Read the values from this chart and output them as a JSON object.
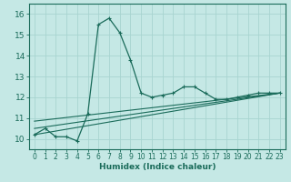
{
  "xlabel": "Humidex (Indice chaleur)",
  "bg_color": "#c5e8e5",
  "line_color": "#1a6b5a",
  "grid_color": "#a8d4d0",
  "xlim": [
    -0.5,
    23.5
  ],
  "ylim": [
    9.5,
    16.5
  ],
  "yticks": [
    10,
    11,
    12,
    13,
    14,
    15,
    16
  ],
  "xticks": [
    0,
    1,
    2,
    3,
    4,
    5,
    6,
    7,
    8,
    9,
    10,
    11,
    12,
    13,
    14,
    15,
    16,
    17,
    18,
    19,
    20,
    21,
    22,
    23
  ],
  "series1_x": [
    0,
    1,
    2,
    3,
    4,
    5,
    6,
    7,
    8,
    9,
    10,
    11,
    12,
    13,
    14,
    15,
    16,
    17,
    18,
    19,
    20,
    21,
    22,
    23
  ],
  "series1_y": [
    10.2,
    10.5,
    10.1,
    10.1,
    9.9,
    11.2,
    15.5,
    15.8,
    15.1,
    13.8,
    12.2,
    12.0,
    12.1,
    12.2,
    12.5,
    12.5,
    12.2,
    11.9,
    11.9,
    12.0,
    12.1,
    12.2,
    12.2,
    12.2
  ],
  "trend1_x": [
    0,
    23
  ],
  "trend1_y": [
    10.2,
    12.2
  ],
  "trend2_x": [
    0,
    23
  ],
  "trend2_y": [
    10.5,
    12.2
  ],
  "trend3_x": [
    0,
    23
  ],
  "trend3_y": [
    10.85,
    12.2
  ]
}
